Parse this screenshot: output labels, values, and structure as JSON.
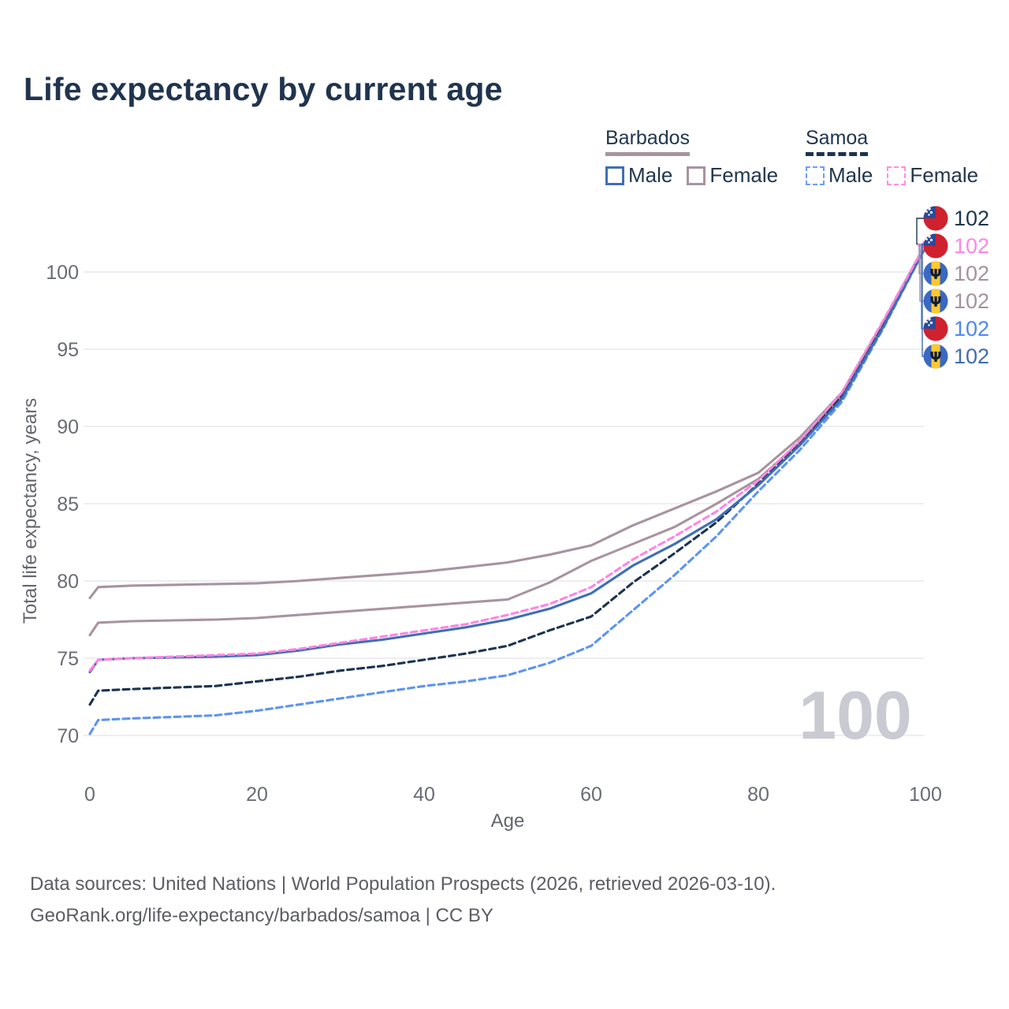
{
  "page": {
    "title": "Life expectancy by current age",
    "watermark": "100"
  },
  "legend": {
    "groups": [
      {
        "label": "Barbados",
        "line_style": "solid",
        "color": "#a8939f",
        "items": [
          {
            "label": "Male",
            "color": "#3e6fb7",
            "dash": false
          },
          {
            "label": "Female",
            "color": "#a8939f",
            "dash": false
          }
        ]
      },
      {
        "label": "Samoa",
        "line_style": "dashed",
        "color": "#1c3350",
        "items": [
          {
            "label": "Male",
            "color": "#6e9ef7",
            "dash": true
          },
          {
            "label": "Female",
            "color": "#ff8ee4",
            "dash": true
          }
        ]
      }
    ]
  },
  "chart_data": {
    "type": "line",
    "title": "Life expectancy by current age",
    "xlabel": "Age",
    "ylabel": "Total life expectancy, years",
    "xticks": [
      0,
      20,
      40,
      60,
      80,
      100
    ],
    "yticks": [
      70,
      75,
      80,
      85,
      90,
      95,
      100
    ],
    "xlim": [
      0,
      100
    ],
    "ylim": [
      69.5,
      102.5
    ],
    "grid": "horizontal",
    "x": [
      0,
      1,
      5,
      10,
      15,
      20,
      25,
      30,
      35,
      40,
      45,
      50,
      55,
      60,
      65,
      70,
      75,
      80,
      85,
      90,
      95,
      100
    ],
    "series": [
      {
        "name": "Barbados",
        "country": "Barbados",
        "sex": "both",
        "color": "#a8939f",
        "dash": "solid",
        "values": [
          76.5,
          77.3,
          77.4,
          77.45,
          77.5,
          77.6,
          77.8,
          78.0,
          78.2,
          78.4,
          78.6,
          78.8,
          79.9,
          81.3,
          82.4,
          83.5,
          85.0,
          86.6,
          89.0,
          92.0,
          96.6,
          101.7
        ]
      },
      {
        "name": "Barbados Female",
        "country": "Barbados",
        "sex": "female",
        "color": "#a8939f",
        "dash": "solid",
        "values": [
          78.9,
          79.6,
          79.7,
          79.75,
          79.8,
          79.85,
          80.0,
          80.2,
          80.4,
          80.6,
          80.9,
          81.2,
          81.7,
          82.3,
          83.6,
          84.7,
          85.8,
          87.0,
          89.3,
          92.2,
          96.8,
          101.8
        ]
      },
      {
        "name": "Samoa Male",
        "country": "Samoa",
        "sex": "male",
        "color": "#5d94f2",
        "dash": "dashed",
        "values": [
          70.1,
          71.0,
          71.1,
          71.2,
          71.3,
          71.6,
          72.0,
          72.4,
          72.8,
          73.2,
          73.5,
          73.9,
          74.7,
          75.8,
          78.1,
          80.4,
          82.9,
          85.8,
          88.5,
          91.6,
          96.4,
          101.6
        ]
      },
      {
        "name": "Samoa",
        "country": "Samoa",
        "sex": "both",
        "color": "#1c3350",
        "dash": "dashed",
        "values": [
          72.0,
          72.9,
          73.0,
          73.1,
          73.2,
          73.5,
          73.8,
          74.2,
          74.5,
          74.9,
          75.3,
          75.8,
          76.8,
          77.7,
          79.9,
          81.8,
          83.8,
          86.3,
          88.9,
          92.0,
          96.6,
          101.7
        ]
      },
      {
        "name": "Barbados Male",
        "country": "Barbados",
        "sex": "male",
        "color": "#3e6fb7",
        "dash": "solid",
        "values": [
          74.1,
          74.9,
          75.0,
          75.05,
          75.1,
          75.2,
          75.5,
          75.9,
          76.2,
          76.6,
          77.0,
          77.5,
          78.2,
          79.2,
          81.0,
          82.4,
          84.0,
          86.2,
          88.8,
          91.8,
          96.5,
          101.6
        ]
      },
      {
        "name": "Samoa Female",
        "country": "Samoa",
        "sex": "female",
        "color": "#ff85e2",
        "dash": "dashed",
        "values": [
          74.2,
          74.9,
          75.0,
          75.1,
          75.2,
          75.3,
          75.6,
          76.0,
          76.4,
          76.8,
          77.2,
          77.8,
          78.5,
          79.6,
          81.4,
          82.9,
          84.5,
          86.5,
          89.1,
          92.2,
          96.9,
          101.8
        ]
      }
    ],
    "end_labels": [
      {
        "series": "Samoa",
        "flag": "samoa-flag-icon",
        "value": "102",
        "color": "#1f344d"
      },
      {
        "series": "Samoa Female",
        "flag": "samoa-flag-icon",
        "value": "102",
        "color": "#fb87e3"
      },
      {
        "series": "Barbados Female",
        "flag": "barbados-flag-icon",
        "value": "102",
        "color": "#a4929f"
      },
      {
        "series": "Barbados",
        "flag": "barbados-flag-icon",
        "value": "102",
        "color": "#a4929f"
      },
      {
        "series": "Samoa Male",
        "flag": "samoa-flag-icon",
        "value": "102",
        "color": "#4b87f0"
      },
      {
        "series": "Barbados Male",
        "flag": "barbados-flag-icon",
        "value": "102",
        "color": "#3f6cb2"
      }
    ],
    "legend_position": "top-right"
  },
  "footer": {
    "line1": "Data sources: United Nations | World Population Prospects (2026, retrieved 2026-03-10).",
    "line2": "GeoRank.org/life-expectancy/barbados/samoa | CC BY"
  }
}
